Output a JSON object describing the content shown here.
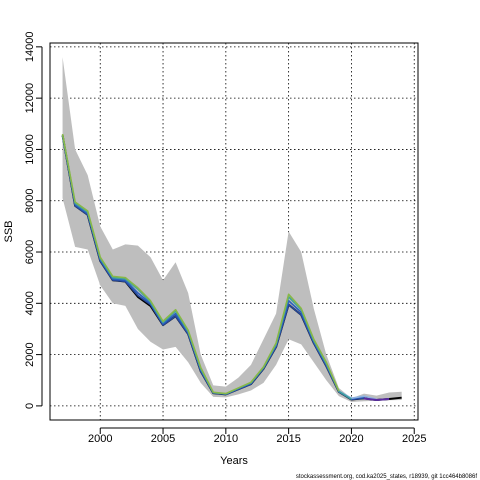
{
  "chart_data": {
    "type": "line",
    "xlabel": "Years",
    "ylabel": "SSB",
    "xlim": [
      1996,
      2025.3
    ],
    "ylim": [
      -550,
      14150
    ],
    "xticks": [
      2000,
      2005,
      2010,
      2015,
      2020,
      2025
    ],
    "yticks": [
      0,
      2000,
      4000,
      6000,
      8000,
      10000,
      12000,
      14000
    ],
    "grid": true,
    "grid_style": "dotted",
    "credit_text": "stockassessment.org, cod.ka2025_states, r18939, git 1cc464b8086f",
    "band": {
      "color": "#bebebe",
      "x": [
        1997,
        1998,
        1999,
        2000,
        2001,
        2002,
        2003,
        2004,
        2005,
        2006,
        2007,
        2008,
        2009,
        2010,
        2011,
        2012,
        2013,
        2014,
        2015,
        2016,
        2017,
        2018,
        2019,
        2020,
        2021,
        2022,
        2023,
        2024
      ],
      "lower": [
        8100,
        6200,
        6100,
        4700,
        4000,
        3900,
        3000,
        2500,
        2200,
        2300,
        1700,
        900,
        350,
        330,
        450,
        600,
        900,
        1600,
        2600,
        2400,
        1700,
        1000,
        380,
        150,
        180,
        200,
        220,
        230
      ],
      "upper": [
        13600,
        10000,
        9000,
        7000,
        6100,
        6300,
        6250,
        5800,
        4900,
        5600,
        4400,
        2000,
        800,
        750,
        1100,
        1600,
        2600,
        3600,
        6800,
        6000,
        3800,
        2000,
        700,
        300,
        480,
        400,
        520,
        550
      ]
    },
    "series": [
      {
        "color": "#000000",
        "width": 2,
        "x": [
          1997,
          1998,
          1999,
          2000,
          2001,
          2002,
          2003,
          2004,
          2005,
          2006,
          2007,
          2008,
          2009,
          2010,
          2011,
          2012,
          2013,
          2014,
          2015,
          2016,
          2017,
          2018,
          2019,
          2020,
          2021,
          2022,
          2023,
          2024
        ],
        "values": [
          10550,
          7800,
          7450,
          5650,
          4900,
          4850,
          4250,
          3900,
          3150,
          3500,
          2800,
          1350,
          500,
          450,
          650,
          850,
          1450,
          2300,
          3950,
          3550,
          2450,
          1550,
          550,
          250,
          300,
          230,
          270,
          320
        ]
      },
      {
        "color": "#26489a",
        "width": 1.6,
        "x": [
          1997,
          1998,
          1999,
          2000,
          2001,
          2002,
          2003,
          2004,
          2005,
          2006,
          2007,
          2008,
          2009,
          2010,
          2011,
          2012,
          2013,
          2014,
          2015,
          2016,
          2017,
          2018,
          2019,
          2020,
          2021,
          2022,
          2023
        ],
        "values": [
          10550,
          7800,
          7450,
          5650,
          4900,
          4850,
          4300,
          3950,
          3150,
          3500,
          2800,
          1350,
          500,
          450,
          650,
          850,
          1450,
          2300,
          3950,
          3550,
          2450,
          1550,
          550,
          250,
          300,
          230,
          270
        ]
      },
      {
        "color": "#2c5fbf",
        "width": 1.6,
        "x": [
          1997,
          1998,
          1999,
          2000,
          2001,
          2002,
          2003,
          2004,
          2005,
          2006,
          2007,
          2008,
          2009,
          2010,
          2011,
          2012,
          2013,
          2014,
          2015,
          2016,
          2017,
          2018,
          2019,
          2020,
          2021
        ],
        "values": [
          10550,
          7850,
          7500,
          5700,
          4950,
          4900,
          4400,
          4000,
          3200,
          3600,
          2850,
          1400,
          510,
          460,
          670,
          880,
          1480,
          2350,
          4100,
          3650,
          2500,
          1600,
          560,
          280,
          350
        ]
      },
      {
        "color": "#8fb3e0",
        "width": 1.6,
        "x": [
          2019,
          2020,
          2021,
          2022
        ],
        "values": [
          580,
          300,
          380,
          260
        ]
      },
      {
        "color": "#40a0a0",
        "width": 1.6,
        "x": [
          1997,
          1998,
          1999,
          2000,
          2001,
          2002,
          2003,
          2004,
          2005,
          2006,
          2007,
          2008,
          2009,
          2010,
          2011,
          2012,
          2013,
          2014,
          2015,
          2016,
          2017,
          2018,
          2019,
          2020
        ],
        "values": [
          10550,
          7900,
          7550,
          5750,
          5000,
          4950,
          4550,
          4050,
          3250,
          3700,
          2900,
          1450,
          520,
          470,
          690,
          900,
          1500,
          2400,
          4250,
          3750,
          2550,
          1650,
          570,
          260
        ]
      },
      {
        "color": "#5a2ba0",
        "width": 2,
        "x": [
          2021,
          2022,
          2023
        ],
        "values": [
          290,
          230,
          270
        ]
      },
      {
        "color": "#88b848",
        "width": 1.6,
        "x": [
          1997,
          1998,
          1999,
          2000,
          2001,
          2002,
          2003,
          2004,
          2005,
          2006,
          2007,
          2008,
          2009,
          2010,
          2011,
          2012,
          2013,
          2014,
          2015,
          2016,
          2017,
          2018,
          2019
        ],
        "values": [
          10600,
          7950,
          7600,
          5800,
          5050,
          5000,
          4600,
          4100,
          3300,
          3750,
          2950,
          1500,
          530,
          480,
          700,
          920,
          1520,
          2450,
          4350,
          3800,
          2600,
          1700,
          580
        ]
      }
    ]
  }
}
